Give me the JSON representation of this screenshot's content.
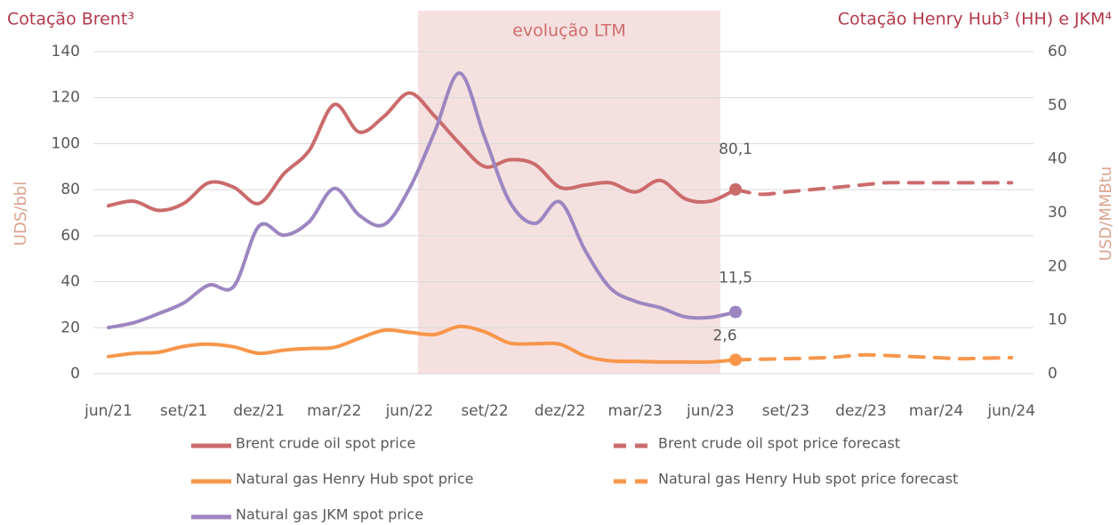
{
  "chart_data": {
    "type": "line",
    "title": "Cotação Brent³",
    "title_right": "Cotação Henry Hub³ (HH) e JKM⁴",
    "ylabel": "UDS/bbl",
    "y2label": "USD/MMBtu",
    "annotation": "evolução LTM",
    "categories": [
      "jun/21",
      null,
      null,
      "set/21",
      null,
      null,
      "dez/21",
      null,
      null,
      "mar/22",
      null,
      null,
      "jun/22",
      null,
      null,
      "set/22",
      null,
      null,
      "dez/22",
      null,
      null,
      "mar/23",
      null,
      null,
      "jun/23",
      null,
      null,
      "set/23",
      null,
      null,
      "dez/23",
      null,
      null,
      "mar/24",
      null,
      null,
      "jun/24"
    ],
    "ylim": [
      0,
      140
    ],
    "yticks": [
      0,
      20,
      40,
      60,
      80,
      100,
      120,
      140
    ],
    "y2lim": [
      0,
      60
    ],
    "y2ticks": [
      0,
      10,
      20,
      30,
      40,
      50,
      60
    ],
    "grid": true,
    "series": [
      {
        "name": "Brent crude oil spot price",
        "color": "#cb6b6c",
        "dash": false,
        "axis": "y",
        "values": [
          73,
          75,
          71,
          74,
          83,
          81,
          74,
          87,
          97,
          117,
          105,
          112,
          122,
          112,
          100,
          90,
          93,
          91,
          81,
          82,
          83,
          79,
          84,
          76,
          75,
          80.1,
          null,
          null,
          null,
          null,
          null,
          null,
          null,
          null,
          null,
          null,
          null
        ],
        "value_labels": [
          null,
          null,
          null,
          null,
          null,
          null,
          null,
          null,
          null,
          null,
          null,
          null,
          null,
          null,
          null,
          null,
          null,
          null,
          null,
          null,
          null,
          null,
          null,
          null,
          null,
          "80,1",
          null,
          null,
          null,
          null,
          null,
          null,
          null,
          null,
          null,
          null,
          null
        ]
      },
      {
        "name": "Brent crude oil spot price forecast",
        "color": "#cb6b6c",
        "dash": true,
        "axis": "y",
        "values": [
          null,
          null,
          null,
          null,
          null,
          null,
          null,
          null,
          null,
          null,
          null,
          null,
          null,
          null,
          null,
          null,
          null,
          null,
          null,
          null,
          null,
          null,
          null,
          null,
          null,
          80.1,
          78,
          79,
          80,
          81,
          82,
          83,
          83,
          83,
          83,
          83,
          83
        ]
      },
      {
        "name": "Natural gas Henry Hub spot price",
        "color": "#f7964a",
        "dash": false,
        "axis": "y2",
        "values": [
          3.2,
          3.8,
          4.0,
          5.1,
          5.5,
          5.0,
          3.8,
          4.4,
          4.7,
          4.9,
          6.6,
          8.1,
          7.7,
          7.3,
          8.8,
          7.8,
          5.7,
          5.6,
          5.5,
          3.3,
          2.4,
          2.3,
          2.2,
          2.2,
          2.2,
          2.6,
          null,
          null,
          null,
          null,
          null,
          null,
          null,
          null,
          null,
          null,
          null
        ],
        "value_labels": [
          null,
          null,
          null,
          null,
          null,
          null,
          null,
          null,
          null,
          null,
          null,
          null,
          null,
          null,
          null,
          null,
          null,
          null,
          null,
          null,
          null,
          null,
          null,
          null,
          null,
          "2,6",
          null,
          null,
          null,
          null,
          null,
          null,
          null,
          null,
          null,
          null,
          null
        ]
      },
      {
        "name": "Natural gas Henry Hub spot price forecast",
        "color": "#f7964a",
        "dash": true,
        "axis": "y2",
        "values": [
          null,
          null,
          null,
          null,
          null,
          null,
          null,
          null,
          null,
          null,
          null,
          null,
          null,
          null,
          null,
          null,
          null,
          null,
          null,
          null,
          null,
          null,
          null,
          null,
          null,
          2.6,
          2.7,
          2.8,
          2.9,
          3.1,
          3.5,
          3.4,
          3.2,
          3.0,
          2.8,
          2.9,
          3.0
        ]
      },
      {
        "name": "Natural gas JKM spot price",
        "color": "#9c86c1",
        "dash": false,
        "axis": "y2",
        "values": [
          8.6,
          9.5,
          11.2,
          13.2,
          16.5,
          16.3,
          27.5,
          25.8,
          28.3,
          34.5,
          29.5,
          27.8,
          34.5,
          45,
          56,
          44,
          32,
          28,
          32,
          23,
          16,
          13.5,
          12.3,
          10.6,
          10.5,
          11.5,
          null,
          null,
          null,
          null,
          null,
          null,
          null,
          null,
          null,
          null,
          null
        ],
        "value_labels": [
          null,
          null,
          null,
          null,
          null,
          null,
          null,
          null,
          null,
          null,
          null,
          null,
          null,
          null,
          null,
          null,
          null,
          null,
          null,
          null,
          null,
          null,
          null,
          null,
          null,
          "11,5",
          null,
          null,
          null,
          null,
          null,
          null,
          null,
          null,
          null,
          null,
          null
        ]
      }
    ]
  }
}
